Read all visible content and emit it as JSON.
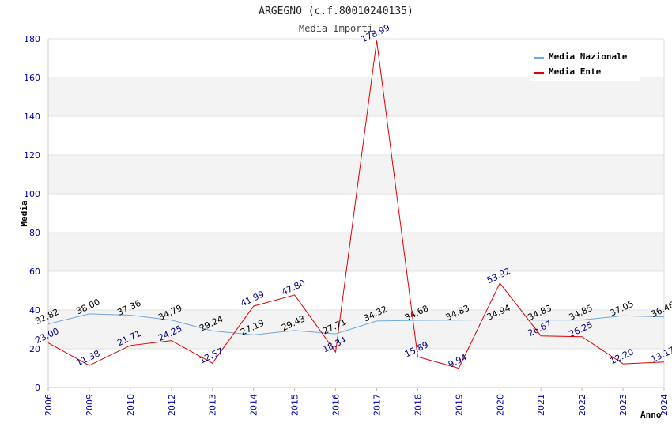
{
  "chart_data": {
    "type": "line",
    "title": "ARGEGNO (c.f.80010240135)",
    "subtitle": "Media Importi",
    "xlabel": "Anno",
    "ylabel": "Media",
    "ylim": [
      0,
      180
    ],
    "yticks": [
      "0",
      "20",
      "40",
      "60",
      "80",
      "100",
      "120",
      "140",
      "160",
      "180"
    ],
    "categories": [
      "2006",
      "2009",
      "2010",
      "2012",
      "2013",
      "2014",
      "2015",
      "2016",
      "2017",
      "2018",
      "2019",
      "2020",
      "2021",
      "2022",
      "2023",
      "2024"
    ],
    "series": [
      {
        "name": "Media Nazionale",
        "color": "#6fa8dc",
        "label_color": "#000000",
        "values": [
          32.82,
          38.0,
          37.36,
          34.79,
          29.24,
          27.19,
          29.43,
          27.71,
          34.32,
          34.68,
          34.83,
          34.94,
          34.83,
          34.85,
          37.05,
          36.46
        ],
        "labels": [
          "32.82",
          "38.00",
          "37.36",
          "34.79",
          "29.24",
          "27.19",
          "29.43",
          "27.71",
          "34.32",
          "34.68",
          "34.83",
          "34.94",
          "34.83",
          "34.85",
          "37.05",
          "36.46"
        ]
      },
      {
        "name": "Media Ente",
        "color": "#dd0000",
        "label_color": "#000080",
        "values": [
          23.0,
          11.38,
          21.71,
          24.25,
          12.57,
          41.99,
          47.8,
          18.34,
          178.99,
          15.89,
          9.94,
          53.92,
          26.67,
          26.25,
          12.2,
          13.17
        ],
        "labels": [
          "23.00",
          "11.38",
          "21.71",
          "24.25",
          "12.57",
          "41.99",
          "47.80",
          "18.34",
          "178.99",
          "15.89",
          "9.94",
          "53.92",
          "26.67",
          "26.25",
          "12.20",
          "13.17"
        ]
      }
    ],
    "legend_position": "top-right",
    "grid": true
  }
}
